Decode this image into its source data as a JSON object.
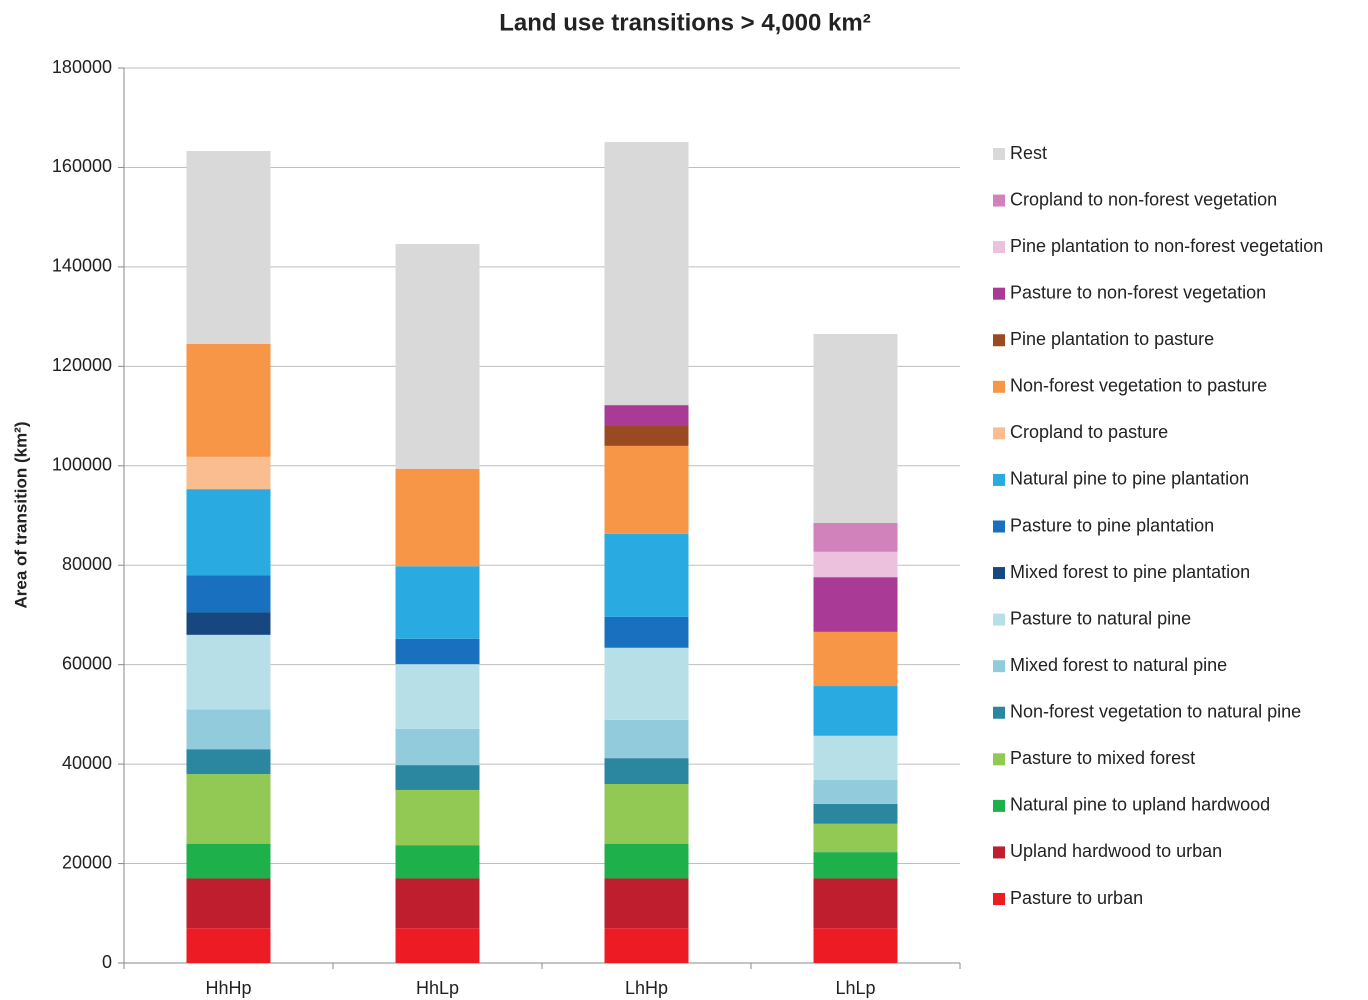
{
  "chart_data": {
    "type": "stacked_bar",
    "title": "Land use transitions > 4,000 km²",
    "y_label": "Area of transition (km²)",
    "categories": [
      "HhHp",
      "HhLp",
      "LhHp",
      "LhLp"
    ],
    "ylim": [
      0,
      180000
    ],
    "yticks": [
      0,
      20000,
      40000,
      60000,
      80000,
      100000,
      120000,
      140000,
      160000,
      180000
    ],
    "grid": true,
    "legend": "right",
    "series": [
      {
        "name": "Pasture to urban",
        "color": "#ed1c24",
        "values": [
          7000,
          7000,
          7000,
          7000
        ]
      },
      {
        "name": "Upland hardwood to urban",
        "color": "#be1e2d",
        "values": [
          10000,
          10000,
          10000,
          10000
        ]
      },
      {
        "name": "Natural pine to upland hardwood",
        "color": "#1db04b",
        "values": [
          7000,
          6700,
          7000,
          5300
        ]
      },
      {
        "name": "Pasture to mixed forest",
        "color": "#92c854",
        "values": [
          14000,
          11100,
          12000,
          5700
        ]
      },
      {
        "name": "Non-forest vegetation to natural pine",
        "color": "#2b86a0",
        "values": [
          5000,
          5000,
          5200,
          4000
        ]
      },
      {
        "name": "Mixed forest to natural pine",
        "color": "#92ccdc",
        "values": [
          8000,
          7300,
          7700,
          4800
        ]
      },
      {
        "name": "Pasture to natural pine",
        "color": "#b7dfe8",
        "values": [
          15000,
          13000,
          14500,
          8900
        ]
      },
      {
        "name": "Mixed forest to pine plantation",
        "color": "#17477e",
        "values": [
          4500,
          0,
          0,
          0
        ]
      },
      {
        "name": "Pasture to pine plantation",
        "color": "#1870be",
        "values": [
          7500,
          5100,
          6200,
          0
        ]
      },
      {
        "name": "Natural pine to pine plantation",
        "color": "#29abe2",
        "values": [
          17300,
          14600,
          16700,
          10000
        ]
      },
      {
        "name": "Cropland to pasture",
        "color": "#f9bd8f",
        "values": [
          6500,
          0,
          0,
          0
        ]
      },
      {
        "name": "Non-forest vegetation to pasture",
        "color": "#f79646",
        "values": [
          22700,
          19600,
          17700,
          10900
        ]
      },
      {
        "name": "Pine plantation to pasture",
        "color": "#9a4a21",
        "values": [
          0,
          0,
          4000,
          0
        ]
      },
      {
        "name": "Pasture to non-forest vegetation",
        "color": "#a93a96",
        "values": [
          0,
          0,
          4200,
          11000
        ]
      },
      {
        "name": "Pine plantation to non-forest vegetation",
        "color": "#ecc1dd",
        "values": [
          0,
          0,
          0,
          5100
        ]
      },
      {
        "name": "Cropland to non-forest vegetation",
        "color": "#d182bb",
        "values": [
          0,
          0,
          0,
          5800
        ]
      },
      {
        "name": "Rest",
        "color": "#d9d9d9",
        "values": [
          38800,
          45200,
          52900,
          38000
        ]
      }
    ]
  }
}
